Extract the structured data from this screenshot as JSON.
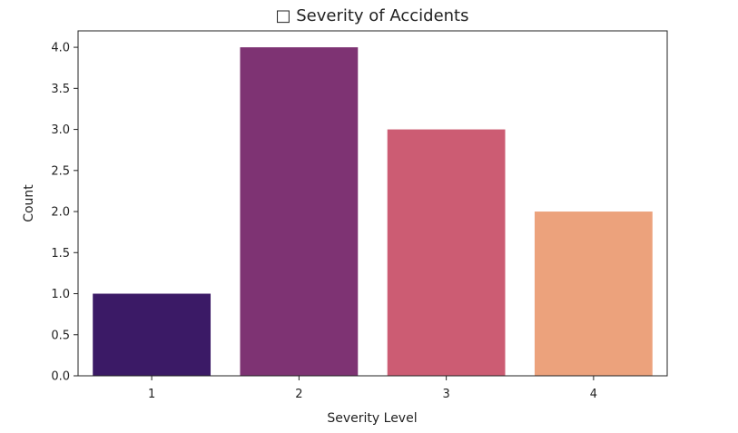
{
  "chart_data": {
    "type": "bar",
    "title": "□ Severity of Accidents",
    "xlabel": "Severity Level",
    "ylabel": "Count",
    "categories": [
      "1",
      "2",
      "3",
      "4"
    ],
    "values": [
      1,
      4,
      3,
      2
    ],
    "colors": [
      "#3b1a66",
      "#7e3373",
      "#cc5c73",
      "#eca27c"
    ],
    "ylim": [
      0,
      4.2
    ],
    "yticks": [
      "0.0",
      "0.5",
      "1.0",
      "1.5",
      "2.0",
      "2.5",
      "3.0",
      "3.5",
      "4.0"
    ],
    "grid": false,
    "legend": null
  }
}
